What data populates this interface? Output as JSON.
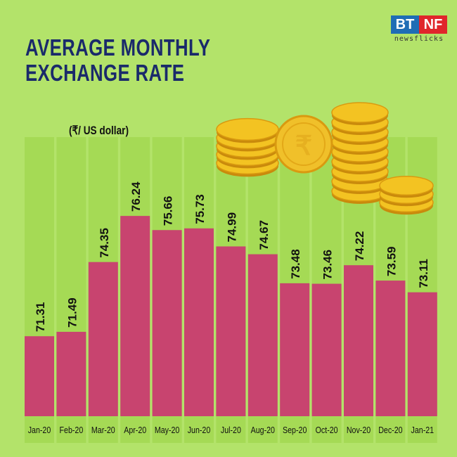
{
  "title": "AVERAGE MONTHLY EXCHANGE RATE",
  "logo": {
    "left": "BT",
    "right": "NF",
    "tagline": "newsflicks"
  },
  "colors": {
    "background": "#b3e36a",
    "column": "#a5da55",
    "bar": "#c8446f",
    "title": "#1a2a6a"
  },
  "chart_data": {
    "type": "bar",
    "title": "AVERAGE MONTHLY EXCHANGE RATE",
    "ylabel": "(₹/ US dollar)",
    "xlabel": "",
    "categories": [
      "Jan-20",
      "Feb-20",
      "Mar-20",
      "Apr-20",
      "May-20",
      "Jun-20",
      "Jul-20",
      "Aug-20",
      "Sep-20",
      "Oct-20",
      "Nov-20",
      "Dec-20",
      "Jan-21"
    ],
    "values": [
      71.31,
      71.49,
      74.35,
      76.24,
      75.66,
      75.73,
      74.99,
      74.67,
      73.48,
      73.46,
      74.22,
      73.59,
      73.11
    ],
    "data_labels": [
      "71.31",
      "71.49",
      "74.35",
      "76.24",
      "75.66",
      "75.73",
      "74.99",
      "74.67",
      "73.48",
      "73.46",
      "74.22",
      "73.59",
      "73.11"
    ],
    "grid": false,
    "legend": "none",
    "decoration": "coins-illustration"
  }
}
